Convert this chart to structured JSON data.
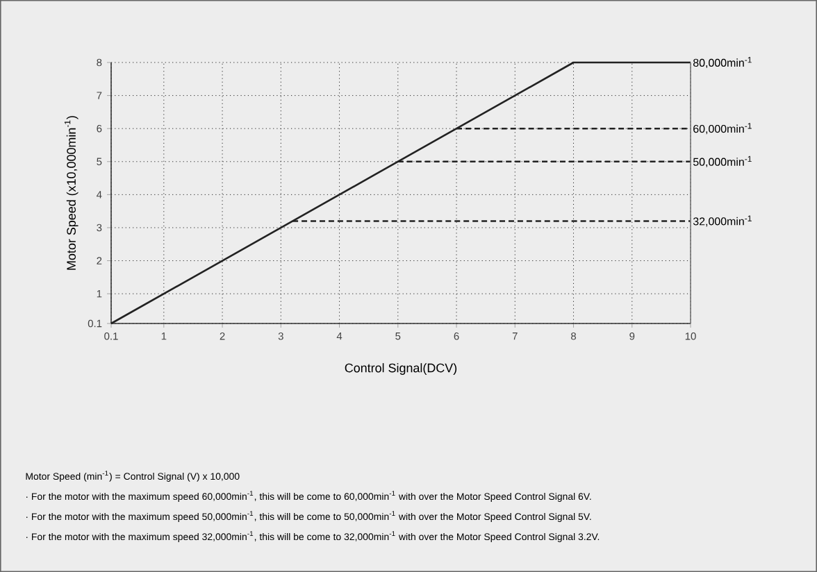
{
  "chart_data": {
    "type": "line",
    "xlabel": "Control Signal(DCV)",
    "ylabel": "Motor Speed (x10,000min$^{-1}$)",
    "xlim": [
      0.1,
      10
    ],
    "ylim": [
      0.1,
      8
    ],
    "xticks": [
      0.1,
      1,
      2,
      3,
      4,
      5,
      6,
      7,
      8,
      9,
      10
    ],
    "yticks": [
      0.1,
      1,
      2,
      3,
      4,
      5,
      6,
      7,
      8
    ],
    "grid": true,
    "legend": false,
    "marker": "none",
    "series": [
      {
        "name": "80,000min$^{-1}$",
        "color": "#222222",
        "line_style": "solid",
        "x": [
          0.1,
          8,
          10
        ],
        "values": [
          0.1,
          8,
          8
        ]
      },
      {
        "name": "60,000min$^{-1}$",
        "color": "#222222",
        "line_style": "dashed",
        "x": [
          6,
          10
        ],
        "values": [
          6,
          6
        ]
      },
      {
        "name": "50,000min$^{-1}$",
        "color": "#222222",
        "line_style": "dashed",
        "x": [
          5,
          10
        ],
        "values": [
          5,
          5
        ]
      },
      {
        "name": "32,000min$^{-1}$",
        "color": "#222222",
        "line_style": "dashed",
        "x": [
          3.2,
          10
        ],
        "values": [
          3.2,
          3.2
        ]
      }
    ],
    "annotations": [
      "Motor Speed (min$^{-1}$) = Control Signal (V) x 10,000",
      "· For the motor with the maximum speed 60,000min$^{-1}$, this will be come to 60,000min$^{-1}$ with over the Motor Speed Control Signal 6V.",
      "· For the motor with the maximum speed 50,000min$^{-1}$, this will be come to 50,000min$^{-1}$ with over the Motor Speed Control Signal 5V.",
      "· For the motor with the maximum speed 32,000min$^{-1}$, this will be come to 32,000min$^{-1}$ with over the Motor Speed Control Signal 3.2V."
    ]
  }
}
